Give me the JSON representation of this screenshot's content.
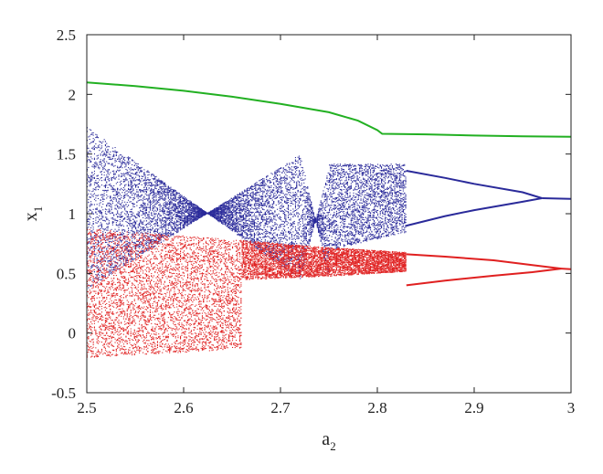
{
  "chart_data": {
    "type": "scatter",
    "title": "",
    "xlabel": {
      "base": "a",
      "subscript": "2"
    },
    "ylabel": {
      "base": "x",
      "subscript": "1"
    },
    "xlim": [
      2.5,
      3.0
    ],
    "ylim": [
      -0.5,
      2.5
    ],
    "x_ticks": [
      "2.5",
      "2.6",
      "2.7",
      "2.8",
      "2.9",
      "3"
    ],
    "y_ticks": [
      "-0.5",
      "0",
      "0.5",
      "1",
      "1.5",
      "2",
      "2.5"
    ],
    "grid": false,
    "legend": "none",
    "series": [
      {
        "color": "#22b022",
        "kind": "curve",
        "points": [
          [
            2.5,
            2.1
          ],
          [
            2.55,
            2.07
          ],
          [
            2.6,
            2.03
          ],
          [
            2.65,
            1.98
          ],
          [
            2.7,
            1.92
          ],
          [
            2.75,
            1.85
          ],
          [
            2.78,
            1.78
          ],
          [
            2.8,
            1.7
          ],
          [
            2.805,
            1.67
          ],
          [
            2.85,
            1.665
          ],
          [
            2.9,
            1.655
          ],
          [
            2.95,
            1.648
          ],
          [
            3.0,
            1.645
          ]
        ]
      },
      {
        "color": "#2a2a9a",
        "kind": "bifurcation",
        "chaotic_band": {
          "a": [
            [
              2.5,
              2.72
            ],
            [
              2.72,
              2.75
            ],
            [
              2.75,
              2.83
            ]
          ],
          "bands": [
            [
              0.37,
              1.73,
              1.5,
              0.45
            ],
            [
              0.45,
              1.5,
              1.4,
              0.45
            ],
            [
              0.7,
              1.42,
              0.85,
              1.42
            ]
          ]
        },
        "branches": [
          {
            "a": [
              2.83,
              2.87,
              2.9,
              2.95,
              2.97
            ],
            "x": [
              1.36,
              1.3,
              1.25,
              1.18,
              1.13
            ]
          },
          {
            "a": [
              2.83,
              2.87,
              2.9,
              2.95,
              2.97
            ],
            "x": [
              0.9,
              0.98,
              1.03,
              1.1,
              1.13
            ]
          },
          {
            "a": [
              2.97,
              3.0
            ],
            "x": [
              1.13,
              1.125
            ]
          }
        ]
      },
      {
        "color": "#e02020",
        "kind": "bifurcation",
        "chaotic_band": {
          "a": [
            [
              2.5,
              2.66
            ],
            [
              2.66,
              2.75
            ],
            [
              2.75,
              2.83
            ]
          ],
          "bands": [
            [
              -0.2,
              0.88,
              -0.13,
              0.78
            ],
            [
              0.45,
              0.78,
              0.48,
              0.72
            ],
            [
              0.48,
              0.72,
              0.52,
              0.68
            ]
          ]
        },
        "branches": [
          {
            "a": [
              2.83,
              2.87,
              2.92,
              2.96,
              2.99
            ],
            "x": [
              0.66,
              0.64,
              0.61,
              0.57,
              0.54
            ]
          },
          {
            "a": [
              2.83,
              2.87,
              2.92,
              2.96,
              2.99
            ],
            "x": [
              0.4,
              0.44,
              0.48,
              0.51,
              0.54
            ]
          },
          {
            "a": [
              2.99,
              3.0
            ],
            "x": [
              0.54,
              0.535
            ]
          }
        ]
      }
    ]
  }
}
